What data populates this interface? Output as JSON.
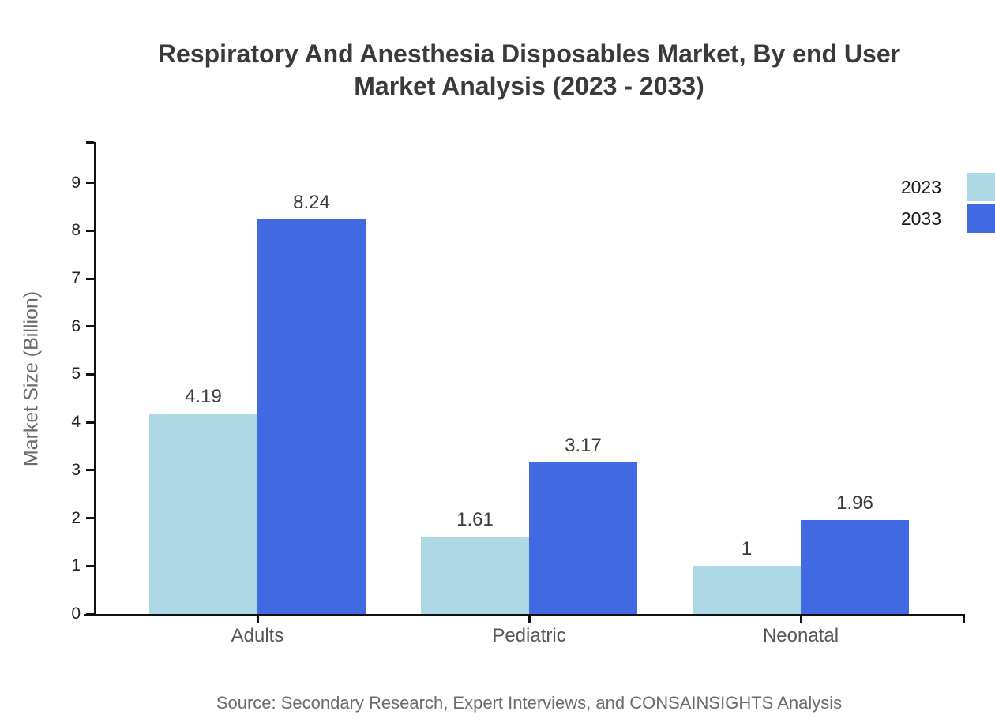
{
  "source_note": "Source: Secondary Research, Expert Interviews, and CONSAINSIGHTS Analysis",
  "colors": {
    "series_2023": "#ADD8E6",
    "series_2033": "#4169E1",
    "axis": "#111111",
    "title_text": "#3a3a3a",
    "muted_text": "#6b6b6b"
  },
  "chart_data": {
    "type": "bar",
    "title": "Respiratory And Anesthesia Disposables Market, By end User Market Analysis (2023 - 2033)",
    "categories": [
      "Adults",
      "Pediatric",
      "Neonatal"
    ],
    "series": [
      {
        "name": "2023",
        "color": "#ADD8E6",
        "values": [
          4.19,
          1.61,
          1
        ],
        "labels": [
          "4.19",
          "1.61",
          "1"
        ]
      },
      {
        "name": "2033",
        "color": "#4169E1",
        "values": [
          8.24,
          3.17,
          1.96
        ],
        "labels": [
          "8.24",
          "3.17",
          "1.96"
        ]
      }
    ],
    "xlabel": "",
    "ylabel": "Market Size (Billion)",
    "ylim": [
      0,
      9.85
    ],
    "yticks": [
      0,
      1,
      2,
      3,
      4,
      5,
      6,
      7,
      8,
      9
    ],
    "grid": false,
    "legend_position": "top-right"
  }
}
